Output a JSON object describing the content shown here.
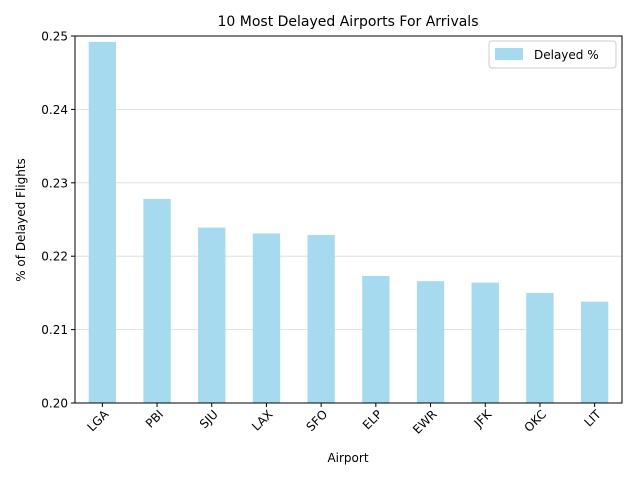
{
  "chart_data": {
    "type": "bar",
    "title": "10 Most Delayed Airports For Arrivals",
    "xlabel": "Airport",
    "ylabel": "% of Delayed Flights",
    "categories": [
      "LGA",
      "PBI",
      "SJU",
      "LAX",
      "SFO",
      "ELP",
      "EWR",
      "JFK",
      "OKC",
      "LIT"
    ],
    "series": [
      {
        "name": "Delayed %",
        "values": [
          0.2492,
          0.2278,
          0.2239,
          0.2231,
          0.2229,
          0.2173,
          0.2166,
          0.2164,
          0.215,
          0.2138
        ]
      }
    ],
    "ylim": [
      0.2,
      0.25
    ],
    "yticks": [
      0.2,
      0.21,
      0.22,
      0.23,
      0.24,
      0.25
    ],
    "ytick_labels": [
      "0.20",
      "0.21",
      "0.22",
      "0.23",
      "0.24",
      "0.25"
    ],
    "grid": "y",
    "legend_position": "top-right",
    "bar_color": "#a6dbef",
    "bar_opacity": 1
  }
}
